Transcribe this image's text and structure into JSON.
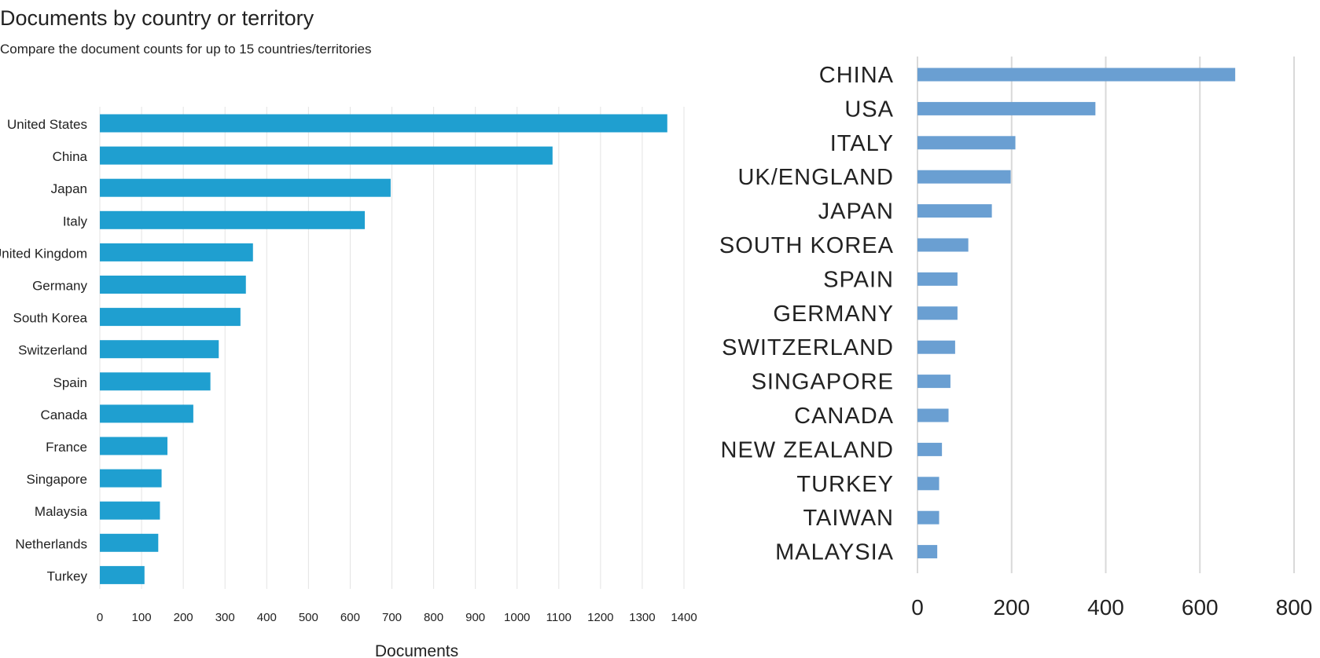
{
  "chart_data": [
    {
      "type": "bar",
      "orientation": "horizontal",
      "title": "Documents by country or territory",
      "subtitle": "Compare the document counts for up to 15 countries/territories",
      "xlabel": "Documents",
      "ylabel": "",
      "xlim": [
        0,
        1400
      ],
      "xticks": [
        0,
        100,
        200,
        300,
        400,
        500,
        600,
        700,
        800,
        900,
        1000,
        1100,
        1200,
        1300,
        1400
      ],
      "grid": "vertical",
      "color": "#1f9fd0",
      "categories": [
        "United States",
        "China",
        "Japan",
        "Italy",
        "United Kingdom",
        "Germany",
        "South Korea",
        "Switzerland",
        "Spain",
        "Canada",
        "France",
        "Singapore",
        "Malaysia",
        "Netherlands",
        "Turkey"
      ],
      "values": [
        1360,
        1085,
        697,
        635,
        367,
        350,
        337,
        285,
        265,
        224,
        162,
        148,
        144,
        140,
        107
      ]
    },
    {
      "type": "bar",
      "orientation": "horizontal",
      "title": "",
      "xlabel": "",
      "ylabel": "",
      "xlim": [
        0,
        800
      ],
      "xticks": [
        0,
        200,
        400,
        600,
        800
      ],
      "grid": "vertical",
      "color": "#6a9fd2",
      "categories": [
        "CHINA",
        "USA",
        "ITALY",
        "UK/ENGLAND",
        "JAPAN",
        "SOUTH KOREA",
        "SPAIN",
        "GERMANY",
        "SWITZERLAND",
        "SINGAPORE",
        "CANADA",
        "NEW ZEALAND",
        "TURKEY",
        "TAIWAN",
        "MALAYSIA"
      ],
      "values": [
        675,
        378,
        208,
        198,
        158,
        108,
        85,
        85,
        80,
        70,
        66,
        52,
        46,
        46,
        42
      ]
    }
  ]
}
